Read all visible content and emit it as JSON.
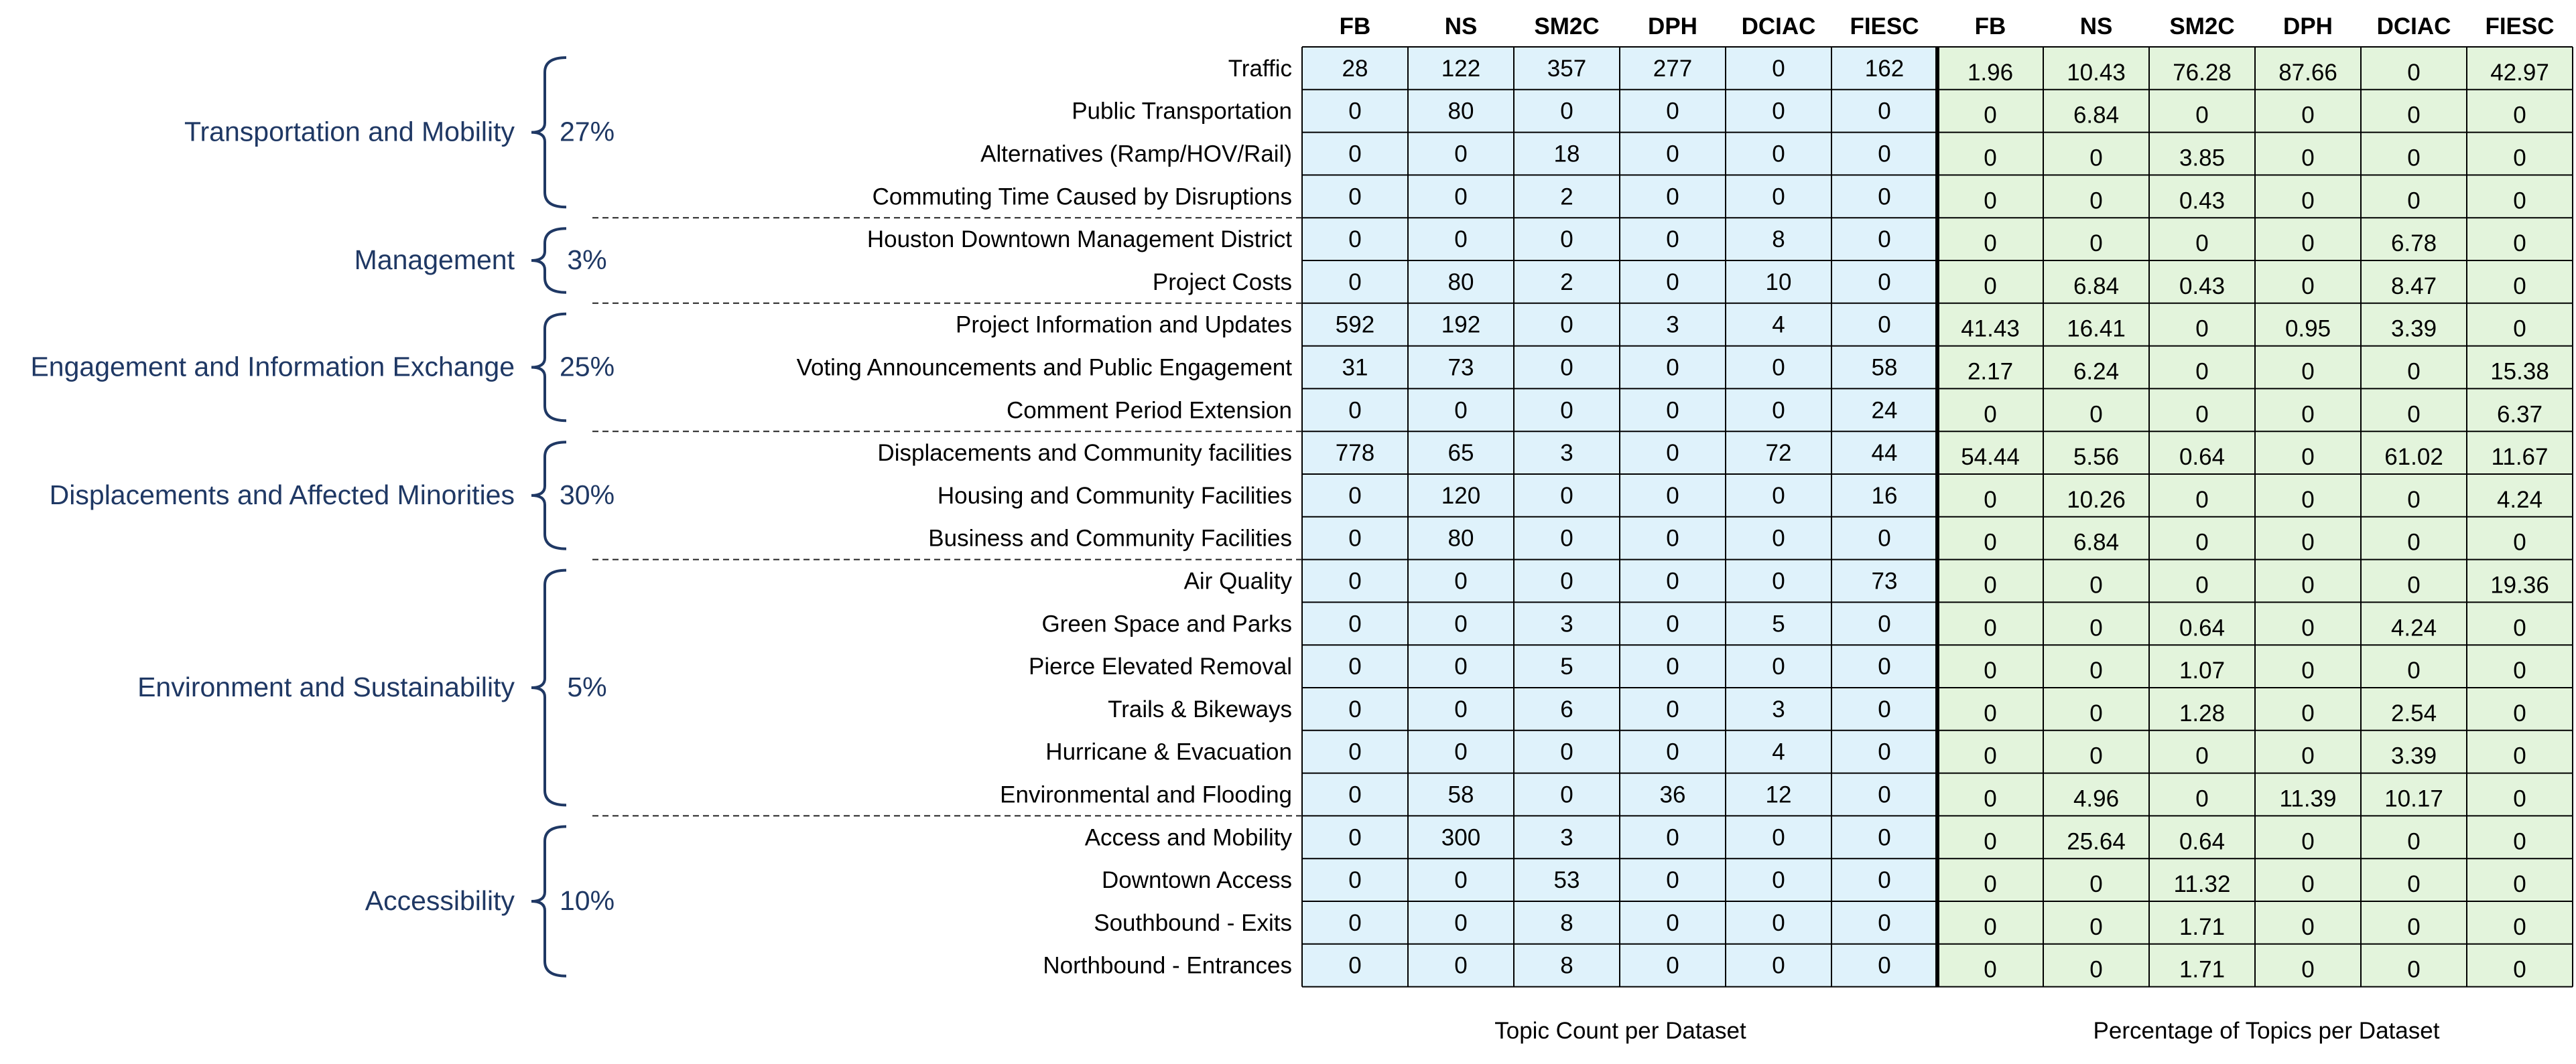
{
  "chart_data": {
    "type": "table",
    "datasets": [
      "FB",
      "NS",
      "SM2C",
      "DPH",
      "DCIAC",
      "FIESC"
    ],
    "count_caption": "Topic Count per Dataset",
    "percent_caption": "Percentage of Topics per Dataset",
    "groups": [
      {
        "name": "Transportation and Mobility",
        "percent": "27%",
        "topics": [
          "Traffic",
          "Public Transportation",
          "Alternatives (Ramp/HOV/Rail)",
          "Commuting Time Caused by Disruptions"
        ]
      },
      {
        "name": "Management",
        "percent": "3%",
        "topics": [
          "Houston Downtown Management District",
          "Project Costs"
        ]
      },
      {
        "name": "Engagement and Information Exchange",
        "percent": "25%",
        "topics": [
          "Project Information and Updates",
          "Voting Announcements and Public Engagement",
          "Comment Period Extension"
        ]
      },
      {
        "name": "Displacements and Affected Minorities",
        "percent": "30%",
        "topics": [
          "Displacements and Community facilities",
          "Housing and Community Facilities",
          "Business and Community Facilities"
        ]
      },
      {
        "name": "Environment and Sustainability",
        "percent": "5%",
        "topics": [
          "Air Quality",
          "Green Space and Parks",
          "Pierce Elevated Removal",
          "Trails & Bikeways",
          "Hurricane & Evacuation",
          "Environmental and Flooding"
        ]
      },
      {
        "name": "Accessibility",
        "percent": "10%",
        "topics": [
          "Access and Mobility",
          "Downtown Access",
          "Southbound - Exits",
          "Northbound - Entrances"
        ]
      }
    ],
    "counts": [
      [
        28,
        122,
        357,
        277,
        0,
        162
      ],
      [
        0,
        80,
        0,
        0,
        0,
        0
      ],
      [
        0,
        0,
        18,
        0,
        0,
        0
      ],
      [
        0,
        0,
        2,
        0,
        0,
        0
      ],
      [
        0,
        0,
        0,
        0,
        8,
        0
      ],
      [
        0,
        80,
        2,
        0,
        10,
        0
      ],
      [
        592,
        192,
        0,
        3,
        4,
        0
      ],
      [
        31,
        73,
        0,
        0,
        0,
        58
      ],
      [
        0,
        0,
        0,
        0,
        0,
        24
      ],
      [
        778,
        65,
        3,
        0,
        72,
        44
      ],
      [
        0,
        120,
        0,
        0,
        0,
        16
      ],
      [
        0,
        80,
        0,
        0,
        0,
        0
      ],
      [
        0,
        0,
        0,
        0,
        0,
        73
      ],
      [
        0,
        0,
        3,
        0,
        5,
        0
      ],
      [
        0,
        0,
        5,
        0,
        0,
        0
      ],
      [
        0,
        0,
        6,
        0,
        3,
        0
      ],
      [
        0,
        0,
        0,
        0,
        4,
        0
      ],
      [
        0,
        58,
        0,
        36,
        12,
        0
      ],
      [
        0,
        300,
        3,
        0,
        0,
        0
      ],
      [
        0,
        0,
        53,
        0,
        0,
        0
      ],
      [
        0,
        0,
        8,
        0,
        0,
        0
      ],
      [
        0,
        0,
        8,
        0,
        0,
        0
      ]
    ],
    "percentages": [
      [
        "1.96",
        "10.43",
        "76.28",
        "87.66",
        "0",
        "42.97"
      ],
      [
        "0",
        "6.84",
        "0",
        "0",
        "0",
        "0"
      ],
      [
        "0",
        "0",
        "3.85",
        "0",
        "0",
        "0"
      ],
      [
        "0",
        "0",
        "0.43",
        "0",
        "0",
        "0"
      ],
      [
        "0",
        "0",
        "0",
        "0",
        "6.78",
        "0"
      ],
      [
        "0",
        "6.84",
        "0.43",
        "0",
        "8.47",
        "0"
      ],
      [
        "41.43",
        "16.41",
        "0",
        "0.95",
        "3.39",
        "0"
      ],
      [
        "2.17",
        "6.24",
        "0",
        "0",
        "0",
        "15.38"
      ],
      [
        "0",
        "0",
        "0",
        "0",
        "0",
        "6.37"
      ],
      [
        "54.44",
        "5.56",
        "0.64",
        "0",
        "61.02",
        "11.67"
      ],
      [
        "0",
        "10.26",
        "0",
        "0",
        "0",
        "4.24"
      ],
      [
        "0",
        "6.84",
        "0",
        "0",
        "0",
        "0"
      ],
      [
        "0",
        "0",
        "0",
        "0",
        "0",
        "19.36"
      ],
      [
        "0",
        "0",
        "0.64",
        "0",
        "4.24",
        "0"
      ],
      [
        "0",
        "0",
        "1.07",
        "0",
        "0",
        "0"
      ],
      [
        "0",
        "0",
        "1.28",
        "0",
        "2.54",
        "0"
      ],
      [
        "0",
        "0",
        "0",
        "0",
        "3.39",
        "0"
      ],
      [
        "0",
        "4.96",
        "0",
        "11.39",
        "10.17",
        "0"
      ],
      [
        "0",
        "25.64",
        "0.64",
        "0",
        "0",
        "0"
      ],
      [
        "0",
        "0",
        "11.32",
        "0",
        "0",
        "0"
      ],
      [
        "0",
        "0",
        "1.71",
        "0",
        "0",
        "0"
      ],
      [
        "0",
        "0",
        "1.71",
        "0",
        "0",
        "0"
      ]
    ],
    "colors": {
      "count_fill": "#dff2fb",
      "percent_fill": "#e3f4dc",
      "group_text": "#1f3864",
      "grid": "#000000"
    }
  }
}
